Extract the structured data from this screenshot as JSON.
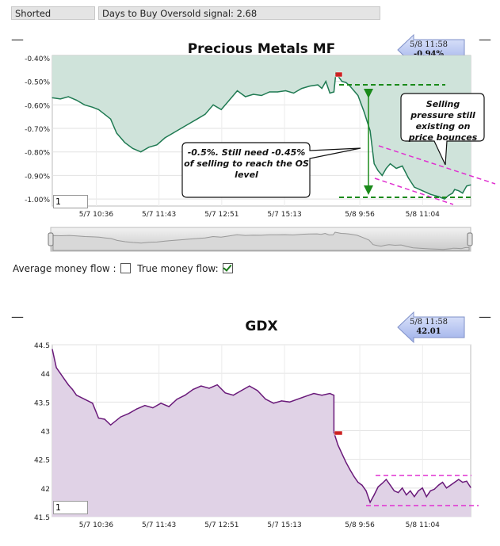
{
  "status": {
    "shorted_label": "Shorted",
    "signal_text": "Days to Buy Oversold signal: 2.68"
  },
  "controls": {
    "minus_glyph": "—",
    "average_label": "Average money flow :",
    "true_label": "True money flow:",
    "average_checked": false,
    "true_checked": true
  },
  "chart_data": [
    {
      "type": "area",
      "title": "Precious Metals MF",
      "badge_time": "5/8 11:58",
      "badge_value": "-0.94%",
      "input_value": "1",
      "y_ticks": [
        "-0.40%",
        "-0.50%",
        "-0.60%",
        "-0.70%",
        "-0.80%",
        "-0.90%",
        "-1.00%"
      ],
      "y_values": [
        -0.4,
        -0.5,
        -0.6,
        -0.7,
        -0.8,
        -0.9,
        -1.0
      ],
      "ylim": [
        -1.03,
        -0.39
      ],
      "x_ticks": [
        "5/7 10:36",
        "5/7 11:43",
        "5/7 12:51",
        "5/7 15:13",
        "5/8 9:56",
        "5/8 11:04"
      ],
      "x_ticks_pos": [
        0.105,
        0.255,
        0.405,
        0.555,
        0.735,
        0.885
      ],
      "colors": {
        "line": "#1f7a52",
        "fill": "#cfe3da",
        "annot": "#1a8a1a",
        "pink": "#e030d0"
      },
      "series": [
        {
          "values": [
            [
              0.0,
              -0.57
            ],
            [
              0.02,
              -0.575
            ],
            [
              0.04,
              -0.565
            ],
            [
              0.06,
              -0.58
            ],
            [
              0.08,
              -0.6
            ],
            [
              0.1,
              -0.61
            ],
            [
              0.115,
              -0.62
            ],
            [
              0.13,
              -0.64
            ],
            [
              0.145,
              -0.66
            ],
            [
              0.16,
              -0.72
            ],
            [
              0.18,
              -0.76
            ],
            [
              0.2,
              -0.785
            ],
            [
              0.22,
              -0.8
            ],
            [
              0.24,
              -0.78
            ],
            [
              0.26,
              -0.77
            ],
            [
              0.28,
              -0.74
            ],
            [
              0.3,
              -0.72
            ],
            [
              0.32,
              -0.7
            ],
            [
              0.34,
              -0.68
            ],
            [
              0.36,
              -0.66
            ],
            [
              0.38,
              -0.64
            ],
            [
              0.4,
              -0.6
            ],
            [
              0.42,
              -0.62
            ],
            [
              0.44,
              -0.58
            ],
            [
              0.46,
              -0.54
            ],
            [
              0.48,
              -0.565
            ],
            [
              0.5,
              -0.555
            ],
            [
              0.52,
              -0.56
            ],
            [
              0.54,
              -0.545
            ],
            [
              0.56,
              -0.545
            ],
            [
              0.58,
              -0.54
            ],
            [
              0.6,
              -0.55
            ],
            [
              0.62,
              -0.53
            ],
            [
              0.64,
              -0.52
            ],
            [
              0.66,
              -0.515
            ],
            [
              0.67,
              -0.53
            ],
            [
              0.68,
              -0.5
            ],
            [
              0.69,
              -0.55
            ],
            [
              0.7,
              -0.545
            ],
            [
              0.705,
              -0.465
            ],
            [
              0.72,
              -0.5
            ],
            [
              0.73,
              -0.505
            ],
            [
              0.74,
              -0.52
            ],
            [
              0.76,
              -0.56
            ],
            [
              0.775,
              -0.63
            ],
            [
              0.79,
              -0.71
            ],
            [
              0.8,
              -0.85
            ],
            [
              0.81,
              -0.88
            ],
            [
              0.82,
              -0.9
            ],
            [
              0.83,
              -0.87
            ],
            [
              0.84,
              -0.85
            ],
            [
              0.855,
              -0.87
            ],
            [
              0.87,
              -0.86
            ],
            [
              0.885,
              -0.91
            ],
            [
              0.9,
              -0.95
            ],
            [
              0.92,
              -0.965
            ],
            [
              0.94,
              -0.98
            ],
            [
              0.96,
              -0.99
            ],
            [
              0.975,
              -1.0
            ],
            [
              0.985,
              -0.985
            ],
            [
              0.995,
              -0.975
            ],
            [
              1.0,
              -0.96
            ],
            [
              1.01,
              -0.965
            ],
            [
              1.02,
              -0.975
            ],
            [
              1.03,
              -0.945
            ],
            [
              1.04,
              -0.94
            ]
          ]
        }
      ],
      "annotations": [
        {
          "text": "-0.5%. Still need -0.45% of selling to reach the OS level"
        },
        {
          "text": "Selling pressure still existing on price bounces"
        }
      ]
    },
    {
      "type": "area",
      "title": "GDX",
      "badge_time": "5/8 11:58",
      "badge_value": "42.01",
      "input_value": "1",
      "y_ticks": [
        "44.5",
        "44",
        "43.5",
        "43",
        "42.5",
        "42",
        "41.5"
      ],
      "y_values": [
        44.5,
        44,
        43.5,
        43,
        42.5,
        42,
        41.5
      ],
      "ylim": [
        41.5,
        44.5
      ],
      "x_ticks": [
        "5/7 10:36",
        "5/7 11:43",
        "5/7 12:51",
        "5/7 15:13",
        "5/8 9:56",
        "5/8 11:04"
      ],
      "x_ticks_pos": [
        0.105,
        0.255,
        0.405,
        0.555,
        0.735,
        0.885
      ],
      "colors": {
        "line": "#6a1a7a",
        "fill": "#e0d2e6",
        "pink": "#e030d0"
      },
      "series": [
        {
          "values": [
            [
              0.0,
              44.42
            ],
            [
              0.01,
              44.1
            ],
            [
              0.02,
              44.0
            ],
            [
              0.03,
              43.9
            ],
            [
              0.04,
              43.8
            ],
            [
              0.05,
              43.72
            ],
            [
              0.06,
              43.62
            ],
            [
              0.08,
              43.55
            ],
            [
              0.1,
              43.48
            ],
            [
              0.115,
              43.22
            ],
            [
              0.13,
              43.2
            ],
            [
              0.145,
              43.1
            ],
            [
              0.17,
              43.24
            ],
            [
              0.19,
              43.3
            ],
            [
              0.21,
              43.38
            ],
            [
              0.23,
              43.44
            ],
            [
              0.25,
              43.4
            ],
            [
              0.27,
              43.48
            ],
            [
              0.29,
              43.42
            ],
            [
              0.31,
              43.55
            ],
            [
              0.33,
              43.62
            ],
            [
              0.35,
              43.72
            ],
            [
              0.37,
              43.78
            ],
            [
              0.39,
              43.74
            ],
            [
              0.41,
              43.8
            ],
            [
              0.43,
              43.66
            ],
            [
              0.45,
              43.62
            ],
            [
              0.47,
              43.7
            ],
            [
              0.49,
              43.78
            ],
            [
              0.51,
              43.7
            ],
            [
              0.53,
              43.55
            ],
            [
              0.55,
              43.48
            ],
            [
              0.57,
              43.52
            ],
            [
              0.59,
              43.5
            ],
            [
              0.61,
              43.55
            ],
            [
              0.63,
              43.6
            ],
            [
              0.65,
              43.65
            ],
            [
              0.67,
              43.62
            ],
            [
              0.69,
              43.65
            ],
            [
              0.7,
              43.62
            ],
            [
              0.7,
              42.97
            ],
            [
              0.71,
              42.75
            ],
            [
              0.72,
              42.6
            ],
            [
              0.73,
              42.45
            ],
            [
              0.74,
              42.32
            ],
            [
              0.75,
              42.2
            ],
            [
              0.76,
              42.1
            ],
            [
              0.77,
              42.05
            ],
            [
              0.78,
              41.95
            ],
            [
              0.79,
              41.75
            ],
            [
              0.8,
              41.88
            ],
            [
              0.81,
              42.02
            ],
            [
              0.82,
              42.08
            ],
            [
              0.83,
              42.15
            ],
            [
              0.84,
              42.05
            ],
            [
              0.85,
              41.95
            ],
            [
              0.86,
              41.92
            ],
            [
              0.87,
              42.0
            ],
            [
              0.88,
              41.88
            ],
            [
              0.89,
              41.95
            ],
            [
              0.9,
              41.85
            ],
            [
              0.91,
              41.95
            ],
            [
              0.92,
              42.0
            ],
            [
              0.93,
              41.85
            ],
            [
              0.94,
              41.95
            ],
            [
              0.95,
              41.98
            ],
            [
              0.96,
              42.05
            ],
            [
              0.97,
              42.1
            ],
            [
              0.98,
              42.0
            ],
            [
              0.99,
              42.05
            ],
            [
              1.0,
              42.1
            ],
            [
              1.01,
              42.15
            ],
            [
              1.02,
              42.1
            ],
            [
              1.03,
              42.12
            ],
            [
              1.04,
              42.01
            ]
          ]
        }
      ]
    }
  ]
}
